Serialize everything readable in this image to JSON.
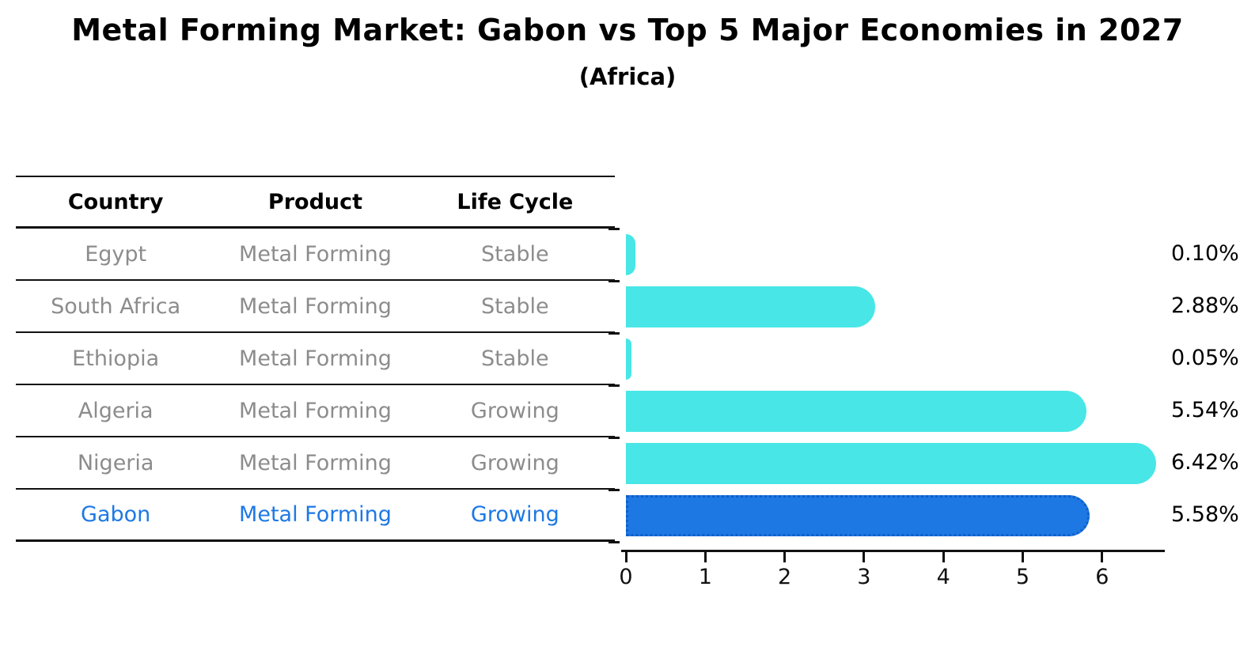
{
  "title": "Metal Forming Market: Gabon vs Top 5 Major Economies in 2027",
  "subtitle": "(Africa)",
  "table": {
    "headers": [
      "Country",
      "Product",
      "Life Cycle"
    ],
    "rows": [
      {
        "country": "Egypt",
        "product": "Metal Forming",
        "life_cycle": "Stable",
        "highlight": false
      },
      {
        "country": "South Africa",
        "product": "Metal Forming",
        "life_cycle": "Stable",
        "highlight": false
      },
      {
        "country": "Ethiopia",
        "product": "Metal Forming",
        "life_cycle": "Stable",
        "highlight": false
      },
      {
        "country": "Algeria",
        "product": "Metal Forming",
        "life_cycle": "Growing",
        "highlight": false
      },
      {
        "country": "Nigeria",
        "product": "Metal Forming",
        "life_cycle": "Growing",
        "highlight": true
      },
      {
        "country": "Gabon",
        "product": "Metal Forming",
        "life_cycle": "Growing",
        "highlight": true
      }
    ]
  },
  "chart_data": {
    "type": "bar",
    "orientation": "horizontal",
    "title": "Metal Forming Market: Gabon vs Top 5 Major Economies in 2027 (Africa)",
    "categories": [
      "Egypt",
      "South Africa",
      "Ethiopia",
      "Algeria",
      "Nigeria",
      "Gabon"
    ],
    "values": [
      0.1,
      2.88,
      0.05,
      5.54,
      6.42,
      5.58
    ],
    "value_labels": [
      "0.10%",
      "2.88%",
      "0.05%",
      "5.54%",
      "6.42%",
      "5.58%"
    ],
    "x_ticks": [
      0,
      1,
      2,
      3,
      4,
      5,
      6
    ],
    "xlim": [
      0,
      6.8
    ],
    "grid": false,
    "legend": false,
    "bar_color": "#48E6E6",
    "highlight_index": 5,
    "highlight_color": "#1E78E4",
    "highlight_border": "#0F5FC6"
  },
  "colors": {
    "background": "#FFFFFF",
    "title_text": "#000000",
    "table_text": "#8C8C8C",
    "highlight_text": "#1E78E4",
    "axis": "#111111"
  }
}
